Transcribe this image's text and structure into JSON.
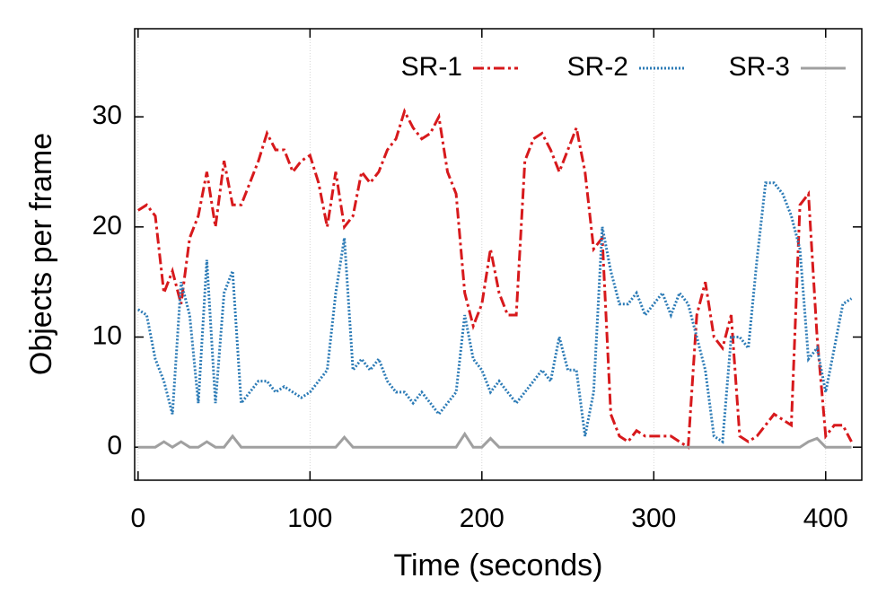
{
  "chart_data": {
    "type": "line",
    "xlabel": "Time (seconds)",
    "ylabel": "Objects per frame",
    "x": [
      0,
      5,
      10,
      15,
      20,
      25,
      30,
      35,
      40,
      45,
      50,
      55,
      60,
      65,
      70,
      75,
      80,
      85,
      90,
      95,
      100,
      105,
      110,
      115,
      120,
      125,
      130,
      135,
      140,
      145,
      150,
      155,
      160,
      165,
      170,
      175,
      180,
      185,
      190,
      195,
      200,
      205,
      210,
      215,
      220,
      225,
      230,
      235,
      240,
      245,
      250,
      255,
      260,
      265,
      270,
      275,
      280,
      285,
      290,
      295,
      300,
      305,
      310,
      315,
      320,
      325,
      330,
      335,
      340,
      345,
      350,
      355,
      360,
      365,
      370,
      375,
      380,
      385,
      390,
      395,
      400,
      405,
      410,
      415
    ],
    "series": [
      {
        "name": "SR-1",
        "color": "#d7191c",
        "dash": "12 4 3 4",
        "values": [
          21.5,
          22,
          21,
          14,
          16,
          13,
          19,
          21,
          25,
          20,
          26,
          22,
          22,
          24,
          26,
          28.5,
          27,
          27,
          25,
          26,
          26.5,
          24,
          20,
          25,
          20,
          21,
          25,
          24,
          25,
          27,
          28,
          30.5,
          29,
          28,
          28.5,
          30,
          25,
          23,
          14,
          11,
          13,
          18,
          14,
          12,
          12,
          26,
          28,
          28.5,
          27,
          25,
          27,
          29,
          25,
          18,
          19,
          3,
          1,
          0.5,
          1.5,
          1,
          1,
          1,
          1,
          0.5,
          0,
          12,
          15,
          10,
          9,
          12,
          1,
          0.5,
          1,
          2,
          3,
          2.5,
          2,
          22,
          23,
          10,
          1,
          2,
          2,
          0.5
        ]
      },
      {
        "name": "SR-2",
        "color": "#2c7bb6",
        "dash": "2 2",
        "values": [
          12.5,
          12,
          8,
          6,
          3,
          15,
          12,
          4,
          17,
          4,
          14,
          16,
          4,
          5,
          6,
          6,
          5,
          5.5,
          5,
          4.5,
          5,
          6,
          7,
          14,
          19,
          7,
          8,
          7,
          8,
          6,
          5,
          5,
          4,
          5,
          4,
          3,
          4,
          5,
          12,
          8,
          7,
          5,
          6,
          5,
          4,
          5,
          6,
          7,
          6,
          10,
          7,
          7,
          1,
          5,
          20,
          16,
          13,
          13,
          14,
          12,
          13,
          14,
          12,
          14,
          13,
          10,
          7,
          1,
          0.5,
          10,
          10,
          9,
          17,
          24,
          24,
          23,
          21,
          18,
          8,
          9,
          5,
          9,
          13,
          13.5
        ]
      },
      {
        "name": "SR-3",
        "color": "#a0a0a0",
        "dash": "",
        "values": [
          0,
          0,
          0,
          0.5,
          0,
          0.5,
          0,
          0,
          0.5,
          0,
          0,
          1,
          0,
          0,
          0,
          0,
          0,
          0,
          0,
          0,
          0,
          0,
          0,
          0,
          0.9,
          0,
          0,
          0,
          0,
          0,
          0,
          0,
          0,
          0,
          0,
          0,
          0,
          0,
          1.2,
          0,
          0,
          0.8,
          0,
          0,
          0,
          0,
          0,
          0,
          0,
          0,
          0,
          0,
          0,
          0,
          0,
          0,
          0,
          0,
          0,
          0,
          0,
          0,
          0,
          0,
          0,
          0,
          0,
          0,
          0,
          0,
          0,
          0,
          0,
          0,
          0,
          0,
          0,
          0,
          0.5,
          0.8,
          0,
          0,
          0,
          0
        ]
      }
    ],
    "xlim": [
      -2,
      421
    ],
    "ylim": [
      -3,
      38
    ],
    "xticks": [
      0,
      100,
      200,
      300,
      400
    ],
    "yticks": [
      0,
      10,
      20,
      30
    ],
    "grid": true
  }
}
